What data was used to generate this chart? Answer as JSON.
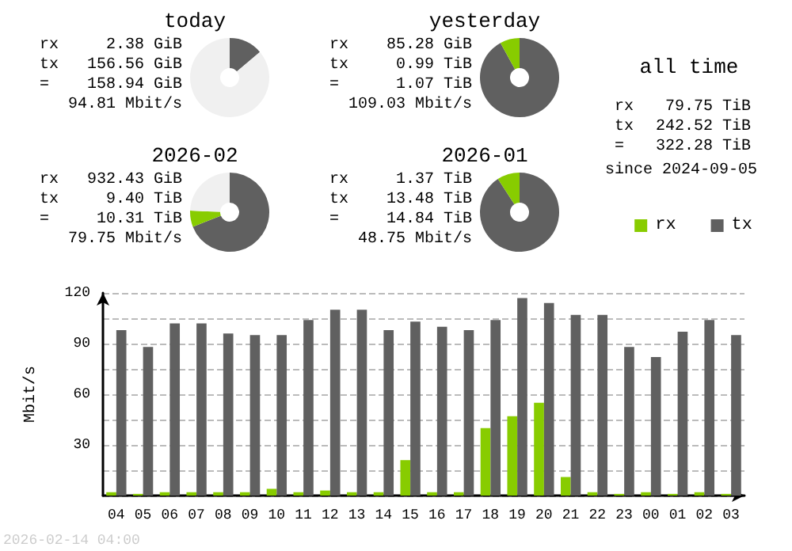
{
  "chart_data": [
    {
      "type": "donut",
      "title": "today",
      "categories": [
        null,
        null,
        null
      ],
      "values": [
        13.8,
        null,
        86.2
      ],
      "colors": [
        "#606060",
        "#88cc00",
        "#f0f0f0"
      ],
      "annotations": [
        "rx 2.38 GiB",
        "tx 156.56 GiB",
        "= 158.94 GiB",
        "94.81 Mbit/s"
      ]
    },
    {
      "type": "donut",
      "title": "yesterday",
      "categories": [
        null,
        null
      ],
      "values": [
        92,
        8
      ],
      "colors": [
        "#606060",
        "#88cc00"
      ],
      "annotations": [
        "rx 85.28 GiB",
        "tx 0.99 TiB",
        "= 1.07 TiB",
        "109.03 Mbit/s"
      ]
    },
    {
      "type": "donut",
      "title": "2026-02",
      "categories": [
        null,
        null,
        null
      ],
      "values": [
        69,
        6.6,
        24.4
      ],
      "colors": [
        "#606060",
        "#88cc00",
        "#f0f0f0"
      ],
      "annotations": [
        "rx 932.43 GiB",
        "tx 9.40 TiB",
        "= 10.31 TiB",
        "79.75 Mbit/s"
      ]
    },
    {
      "type": "donut",
      "title": "2026-01",
      "categories": [
        null,
        null
      ],
      "values": [
        90.8,
        9.2
      ],
      "colors": [
        "#606060",
        "#88cc00"
      ],
      "annotations": [
        "rx 1.37 TiB",
        "tx 13.48 TiB",
        "= 14.84 TiB",
        "48.75 Mbit/s"
      ]
    },
    {
      "type": "other",
      "title": "all time",
      "annotations": [
        "rx 79.75 TiB",
        "tx 242.52 TiB",
        "= 322.28 TiB",
        "since 2024-09-05"
      ]
    },
    {
      "type": "bar",
      "categories": [
        "04",
        "05",
        "06",
        "07",
        "08",
        "09",
        "10",
        "11",
        "12",
        "13",
        "14",
        "15",
        "16",
        "17",
        "18",
        "19",
        "20",
        "21",
        "22",
        "23",
        "00",
        "01",
        "02",
        "03"
      ],
      "series": [
        {
          "name": "rx",
          "color": "#88cc00",
          "values": [
            2,
            1,
            2,
            2,
            2,
            2,
            4,
            2,
            3,
            2,
            2,
            21,
            2,
            2,
            40,
            47,
            55,
            11,
            2,
            1,
            2,
            1,
            2,
            1
          ]
        },
        {
          "name": "tx",
          "color": "#606060",
          "values": [
            98,
            88,
            102,
            102,
            96,
            95,
            95,
            104,
            110,
            110,
            98,
            103,
            100,
            98,
            104,
            117,
            114,
            107,
            107,
            88,
            82,
            97,
            104,
            95
          ]
        }
      ],
      "ylabel": "Mbit/s",
      "ylim": [
        0,
        120
      ],
      "yticks": [
        {
          "value": 0,
          "label": null
        },
        {
          "value": 15,
          "label": null
        },
        30,
        {
          "value": 45,
          "label": null
        },
        60,
        {
          "value": 75,
          "label": null
        },
        90,
        {
          "value": 105,
          "label": null
        },
        120
      ],
      "grid": "y",
      "legend": "top right",
      "annotations": [
        "2026-02-14 04:00"
      ]
    }
  ]
}
